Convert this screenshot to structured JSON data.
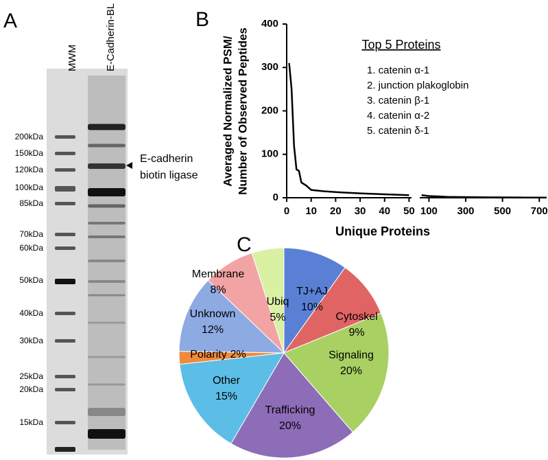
{
  "panel_labels": [
    "A",
    "B",
    "C"
  ],
  "gel": {
    "lanes": [
      "MWM",
      "E-Cadherin-BL"
    ],
    "markers": [
      "200kDa",
      "150kDa",
      "120kDa",
      "100kDa",
      "85kDa",
      "70kDa",
      "60kDa",
      "50kDa",
      "40kDa",
      "30kDa",
      "25kDa",
      "20kDa",
      "15kDa"
    ],
    "annotation": [
      "E-cadherin",
      "biotin ligase"
    ]
  },
  "chart_data": [
    {
      "type": "line",
      "ylabel": [
        "Averaged Normalized PSM/",
        "Number of Observed Peptides"
      ],
      "xlabel": "Unique Proteins",
      "inset_title": "Top 5 Proteins",
      "inset_items": [
        "1. catenin α-1",
        "2. junction plakoglobin",
        "3. catenin β-1",
        "4. catenin α-2",
        "5. catenin δ-1"
      ],
      "xlim": [
        [
          0,
          51
        ],
        [
          50,
          740
        ]
      ],
      "xticks": [
        [
          0,
          10,
          20,
          30,
          40,
          50
        ],
        [
          100,
          300,
          500,
          700
        ]
      ],
      "ylim": [
        0,
        400
      ],
      "yticks": [
        0,
        100,
        200,
        300,
        400
      ],
      "series": [
        {
          "color": "#000000",
          "x": [
            1,
            2,
            3,
            4,
            5,
            6,
            8,
            10,
            15,
            20,
            30,
            40,
            50
          ],
          "values": [
            310,
            250,
            120,
            65,
            62,
            35,
            28,
            18,
            15,
            13,
            10,
            8,
            6
          ]
        },
        {
          "color": "#000000",
          "x": [
            60,
            100,
            200,
            400,
            600,
            740
          ],
          "values": [
            6,
            4,
            2,
            1,
            0.5,
            0.3
          ]
        }
      ]
    },
    {
      "type": "pie",
      "categories": [
        "TJ+AJ",
        "Cytoskel",
        "Signaling",
        "Trafficking",
        "Other",
        "Polarity",
        "Unknown",
        "Membrane",
        "Ubiq"
      ],
      "values": [
        10,
        9,
        20,
        20,
        15,
        2,
        12,
        8,
        5
      ],
      "value_labels": [
        "10%",
        "9%",
        "20%",
        "20%",
        "15%",
        "2%",
        "12%",
        "8%",
        "5%"
      ],
      "colors": [
        "#5a80d6",
        "#e06464",
        "#a9d063",
        "#8d6cb8",
        "#5cbde6",
        "#f08a3c",
        "#8eaae2",
        "#f2a3a3",
        "#daf0a3"
      ]
    }
  ]
}
